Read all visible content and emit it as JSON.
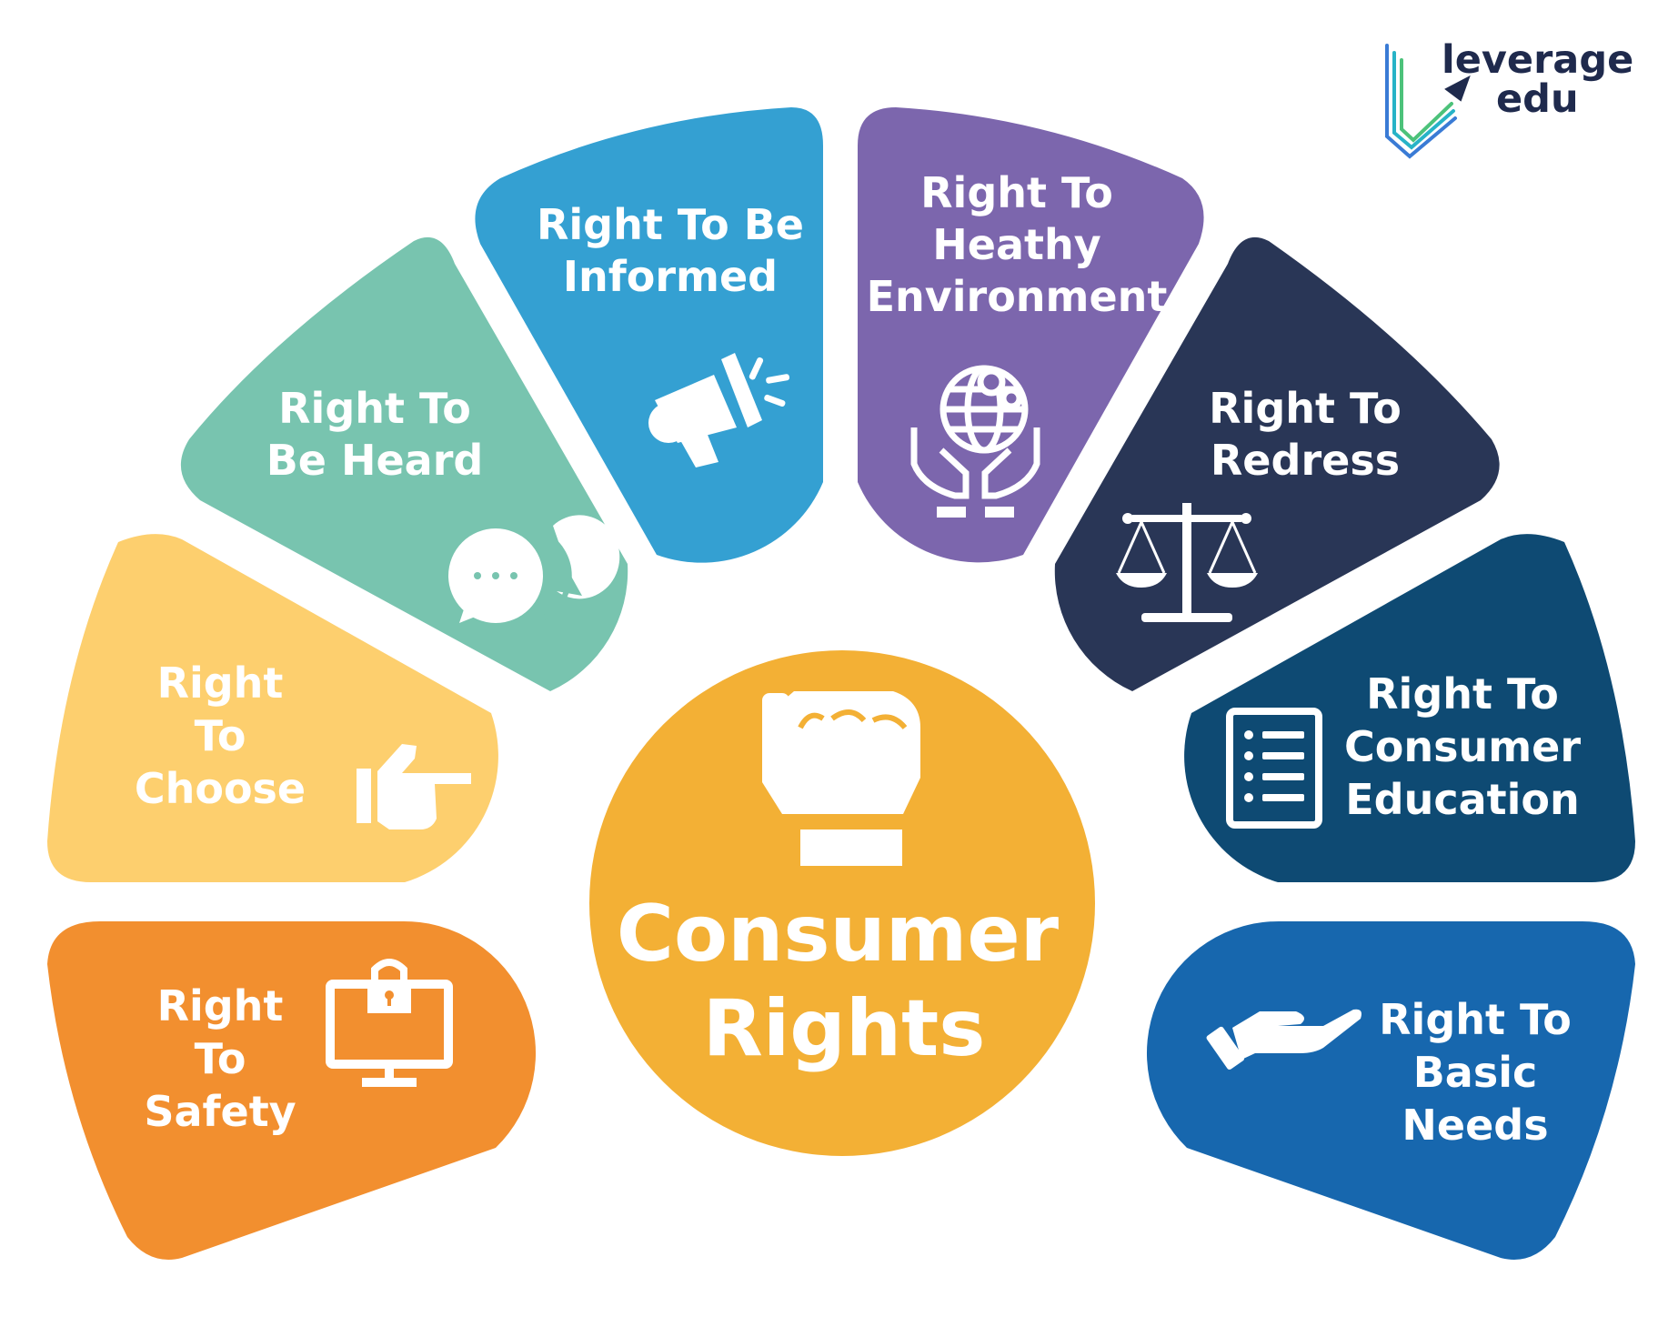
{
  "logo": {
    "line1": "leverage",
    "line2": "edu"
  },
  "center": {
    "line1": "Consumer",
    "line2": "Rights",
    "color": "#F3B035",
    "icon": "raised-fist-icon"
  },
  "petals": [
    {
      "key": "safety",
      "lines": [
        "Right",
        "To",
        "Safety"
      ],
      "color": "#F28F2F",
      "icon": "computer-lock-icon"
    },
    {
      "key": "choose",
      "lines": [
        "Right",
        "To",
        "Choose"
      ],
      "color": "#FDCF6E",
      "icon": "pointing-hand-icon"
    },
    {
      "key": "heard",
      "lines": [
        "Right To",
        "Be Heard"
      ],
      "color": "#78C4AF",
      "icon": "chat-bubbles-icon"
    },
    {
      "key": "informed",
      "lines": [
        "Right To Be",
        "Informed"
      ],
      "color": "#34A0D2",
      "icon": "megaphone-icon"
    },
    {
      "key": "environment",
      "lines": [
        "Right To",
        "Heathy",
        "Environment"
      ],
      "color": "#7C66AD",
      "icon": "globe-hands-icon"
    },
    {
      "key": "redress",
      "lines": [
        "Right To",
        "Redress"
      ],
      "color": "#293656",
      "icon": "scales-icon"
    },
    {
      "key": "education",
      "lines": [
        "Right To",
        "Consumer",
        "Education"
      ],
      "color": "#0E4A73",
      "icon": "checklist-icon"
    },
    {
      "key": "basic",
      "lines": [
        "Right To",
        "Basic",
        "Needs"
      ],
      "color": "#1767AE",
      "icon": "giving-hand-icon"
    }
  ]
}
